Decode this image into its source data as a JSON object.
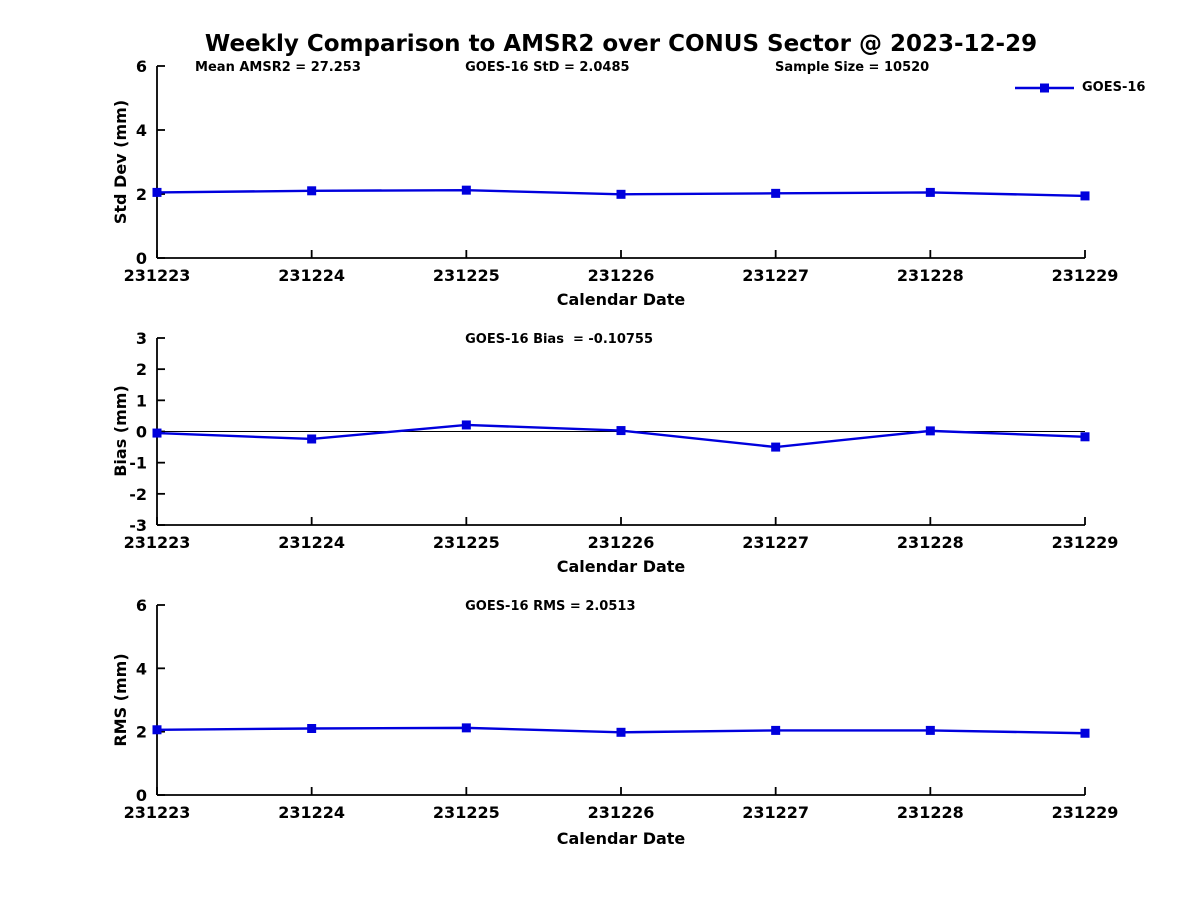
{
  "title": "Weekly Comparison to AMSR2 over CONUS Sector @ 2023-12-29",
  "colors": {
    "line": "#0000dd",
    "axis": "#000000",
    "text": "#000000",
    "background": "#ffffff",
    "zero_line": "#000000"
  },
  "legend": {
    "label": "GOES-16",
    "marker": "square",
    "position": "top-right-above-first-chart"
  },
  "chart_data": [
    {
      "type": "line",
      "name": "std-dev-vs-date",
      "annotations": [
        "Mean AMSR2 = 27.253",
        "GOES-16 StD = 2.0485",
        "Sample Size = 10520"
      ],
      "categories": [
        "231223",
        "231224",
        "231225",
        "231226",
        "231227",
        "231228",
        "231229"
      ],
      "series": [
        {
          "name": "GOES-16",
          "values": [
            2.05,
            2.1,
            2.12,
            1.99,
            2.02,
            2.05,
            1.94
          ]
        }
      ],
      "xlabel": "Calendar Date",
      "ylabel": "Std Dev (mm)",
      "ylim": [
        0,
        6
      ],
      "yticks": [
        0,
        2,
        4,
        6
      ],
      "grid": false,
      "zero_line": false,
      "legend_position": "top-right"
    },
    {
      "type": "line",
      "name": "bias-vs-date",
      "annotations": [
        "GOES-16 Bias  = -0.10755"
      ],
      "categories": [
        "231223",
        "231224",
        "231225",
        "231226",
        "231227",
        "231228",
        "231229"
      ],
      "series": [
        {
          "name": "GOES-16",
          "values": [
            -0.05,
            -0.24,
            0.21,
            0.03,
            -0.5,
            0.02,
            -0.17
          ]
        }
      ],
      "xlabel": "Calendar Date",
      "ylabel": "Bias (mm)",
      "ylim": [
        -3,
        3
      ],
      "yticks": [
        -3,
        -2,
        -1,
        0,
        1,
        2,
        3
      ],
      "grid": false,
      "zero_line": true,
      "legend_position": "none"
    },
    {
      "type": "line",
      "name": "rms-vs-date",
      "annotations": [
        "GOES-16 RMS = 2.0513"
      ],
      "categories": [
        "231223",
        "231224",
        "231225",
        "231226",
        "231227",
        "231228",
        "231229"
      ],
      "series": [
        {
          "name": "GOES-16",
          "values": [
            2.06,
            2.1,
            2.12,
            1.98,
            2.04,
            2.04,
            1.95
          ]
        }
      ],
      "xlabel": "Calendar Date",
      "ylabel": "RMS (mm)",
      "ylim": [
        0,
        6
      ],
      "yticks": [
        0,
        2,
        4,
        6
      ],
      "grid": false,
      "zero_line": false,
      "legend_position": "none"
    }
  ]
}
